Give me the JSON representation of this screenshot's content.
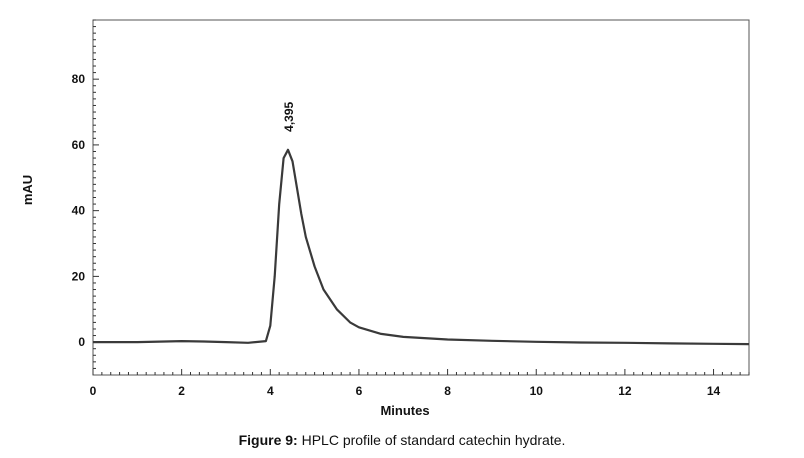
{
  "chart_data": {
    "type": "line",
    "xlabel": "Minutes",
    "ylabel": "mAU",
    "xlim": [
      0,
      14.8
    ],
    "ylim": [
      -10,
      98
    ],
    "xticks": [
      0,
      2,
      4,
      6,
      8,
      10,
      12,
      14
    ],
    "yticks": [
      0,
      20,
      40,
      60,
      80
    ],
    "peak_annotation": {
      "label": "4,395",
      "x": 4.395,
      "y": 58.5
    },
    "series": [
      {
        "color": "#3a3a3a",
        "x": [
          0,
          1,
          2,
          2.5,
          3,
          3.5,
          3.9,
          4.0,
          4.1,
          4.2,
          4.3,
          4.4,
          4.5,
          4.6,
          4.7,
          4.8,
          5.0,
          5.2,
          5.5,
          5.8,
          6.0,
          6.5,
          7.0,
          8.0,
          9.0,
          10.0,
          11.0,
          12.0,
          13.0,
          14.0,
          14.8
        ],
        "y": [
          0,
          0,
          0.3,
          0.2,
          0,
          -0.2,
          0.3,
          5,
          20,
          42,
          56,
          58.5,
          55,
          47,
          39,
          32,
          23,
          16,
          10,
          6,
          4.5,
          2.5,
          1.6,
          0.8,
          0.4,
          0.1,
          -0.1,
          -0.2,
          -0.4,
          -0.5,
          -0.6
        ]
      }
    ]
  },
  "caption": {
    "prefix": "Figure 9:",
    "text": " HPLC profile of standard catechin hydrate."
  }
}
